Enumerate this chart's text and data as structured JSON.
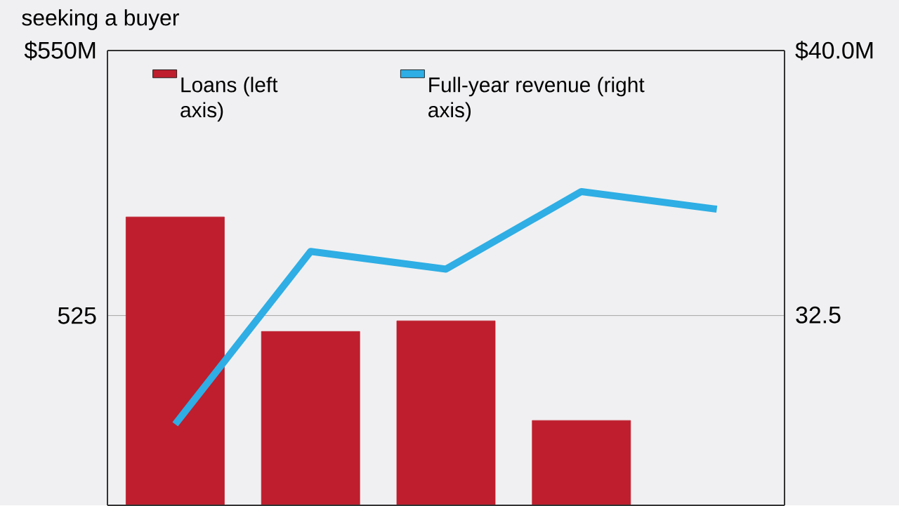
{
  "chart_data": {
    "type": "bar",
    "title": "seeking a buyer",
    "categories": [
      null,
      null,
      null,
      null,
      null
    ],
    "series": [
      {
        "name": "Loans (left axis)",
        "color": "#be1e2d",
        "values": [
          534.3,
          523.5,
          524.5,
          515.1,
          null
        ]
      },
      {
        "name": "Full-year revenue (right axis)",
        "type": "line",
        "axis": "y2",
        "color": "#2eaee4",
        "values": [
          29.4,
          34.3,
          33.8,
          36.0,
          35.5
        ]
      }
    ],
    "ylim": [
      507.1,
      550
    ],
    "yticks": [
      {
        "value": 550,
        "label": "$550M"
      },
      525
    ],
    "y2lim": [
      27.1,
      40
    ],
    "y2ticks": [
      {
        "value": 40,
        "label": "$40.0M"
      },
      32.5
    ],
    "grid": "y",
    "legend": "top",
    "marker": "none"
  }
}
